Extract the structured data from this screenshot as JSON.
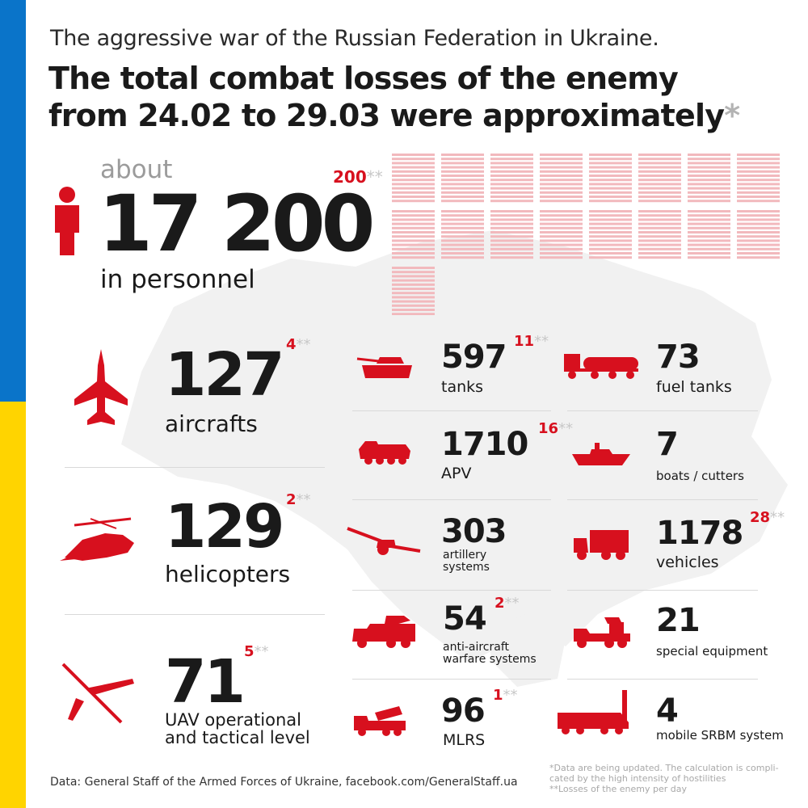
{
  "header": {
    "subtitle": "The aggressive war of the Russian Federation in Ukraine.",
    "title_line1": "The total combat losses of the enemy",
    "title_line2": "from 24.02 to 29.03 were approximately",
    "title_asterisk": "*"
  },
  "personnel": {
    "prefix": "about",
    "value": "17 200",
    "label": "in personnel",
    "daily": "200",
    "daily_mark": "**",
    "icon": "person-icon"
  },
  "left_items": [
    {
      "value": "127",
      "label": "aircrafts",
      "daily": "4",
      "daily_mark": "**",
      "icon": "aircraft-icon"
    },
    {
      "value": "129",
      "label": "helicopters",
      "daily": "2",
      "daily_mark": "**",
      "icon": "helicopter-icon"
    },
    {
      "value": "71",
      "label_line1": "UAV operational",
      "label_line2": "and tactical level",
      "daily": "5",
      "daily_mark": "**",
      "icon": "uav-icon"
    }
  ],
  "middle_items": [
    {
      "value": "597",
      "label": "tanks",
      "daily": "11",
      "daily_mark": "**",
      "icon": "tank-icon"
    },
    {
      "value": "1710",
      "label": "APV",
      "daily": "16",
      "daily_mark": "**",
      "icon": "apv-icon"
    },
    {
      "value": "303",
      "label_line1": "artillery",
      "label_line2": "systems",
      "icon": "artillery-icon"
    },
    {
      "value": "54",
      "label_line1": "anti-aircraft",
      "label_line2": "warfare systems",
      "daily": "2",
      "daily_mark": "**",
      "icon": "anti-aircraft-icon"
    },
    {
      "value": "96",
      "label": "MLRS",
      "daily": "1",
      "daily_mark": "**",
      "icon": "mlrs-icon"
    }
  ],
  "right_items": [
    {
      "value": "73",
      "label": "fuel tanks",
      "icon": "fuel-tank-icon"
    },
    {
      "value": "7",
      "label": "boats / cutters",
      "icon": "boat-icon"
    },
    {
      "value": "1178",
      "label": "vehicles",
      "daily": "28",
      "daily_mark": "**",
      "icon": "vehicle-icon"
    },
    {
      "value": "21",
      "label": "special equipment",
      "icon": "special-equipment-icon"
    },
    {
      "value": "4",
      "label": "mobile SRBM system",
      "icon": "srbm-icon"
    }
  ],
  "footer": {
    "source": "Data: General Staff of the Armed Forces of Ukraine, facebook.com/GeneralStaff.ua",
    "note1_line1": "*Data are being updated. The calculation is compli-",
    "note1_line2": "cated by the high intensity of hostilities",
    "note2": "**Losses of the enemy per day"
  },
  "colors": {
    "accent_red": "#d7101e",
    "flag_blue": "#0a74c9",
    "flag_yellow": "#ffd400",
    "text_dark": "#1a1a1a",
    "muted_gray": "#9b9b9b"
  }
}
